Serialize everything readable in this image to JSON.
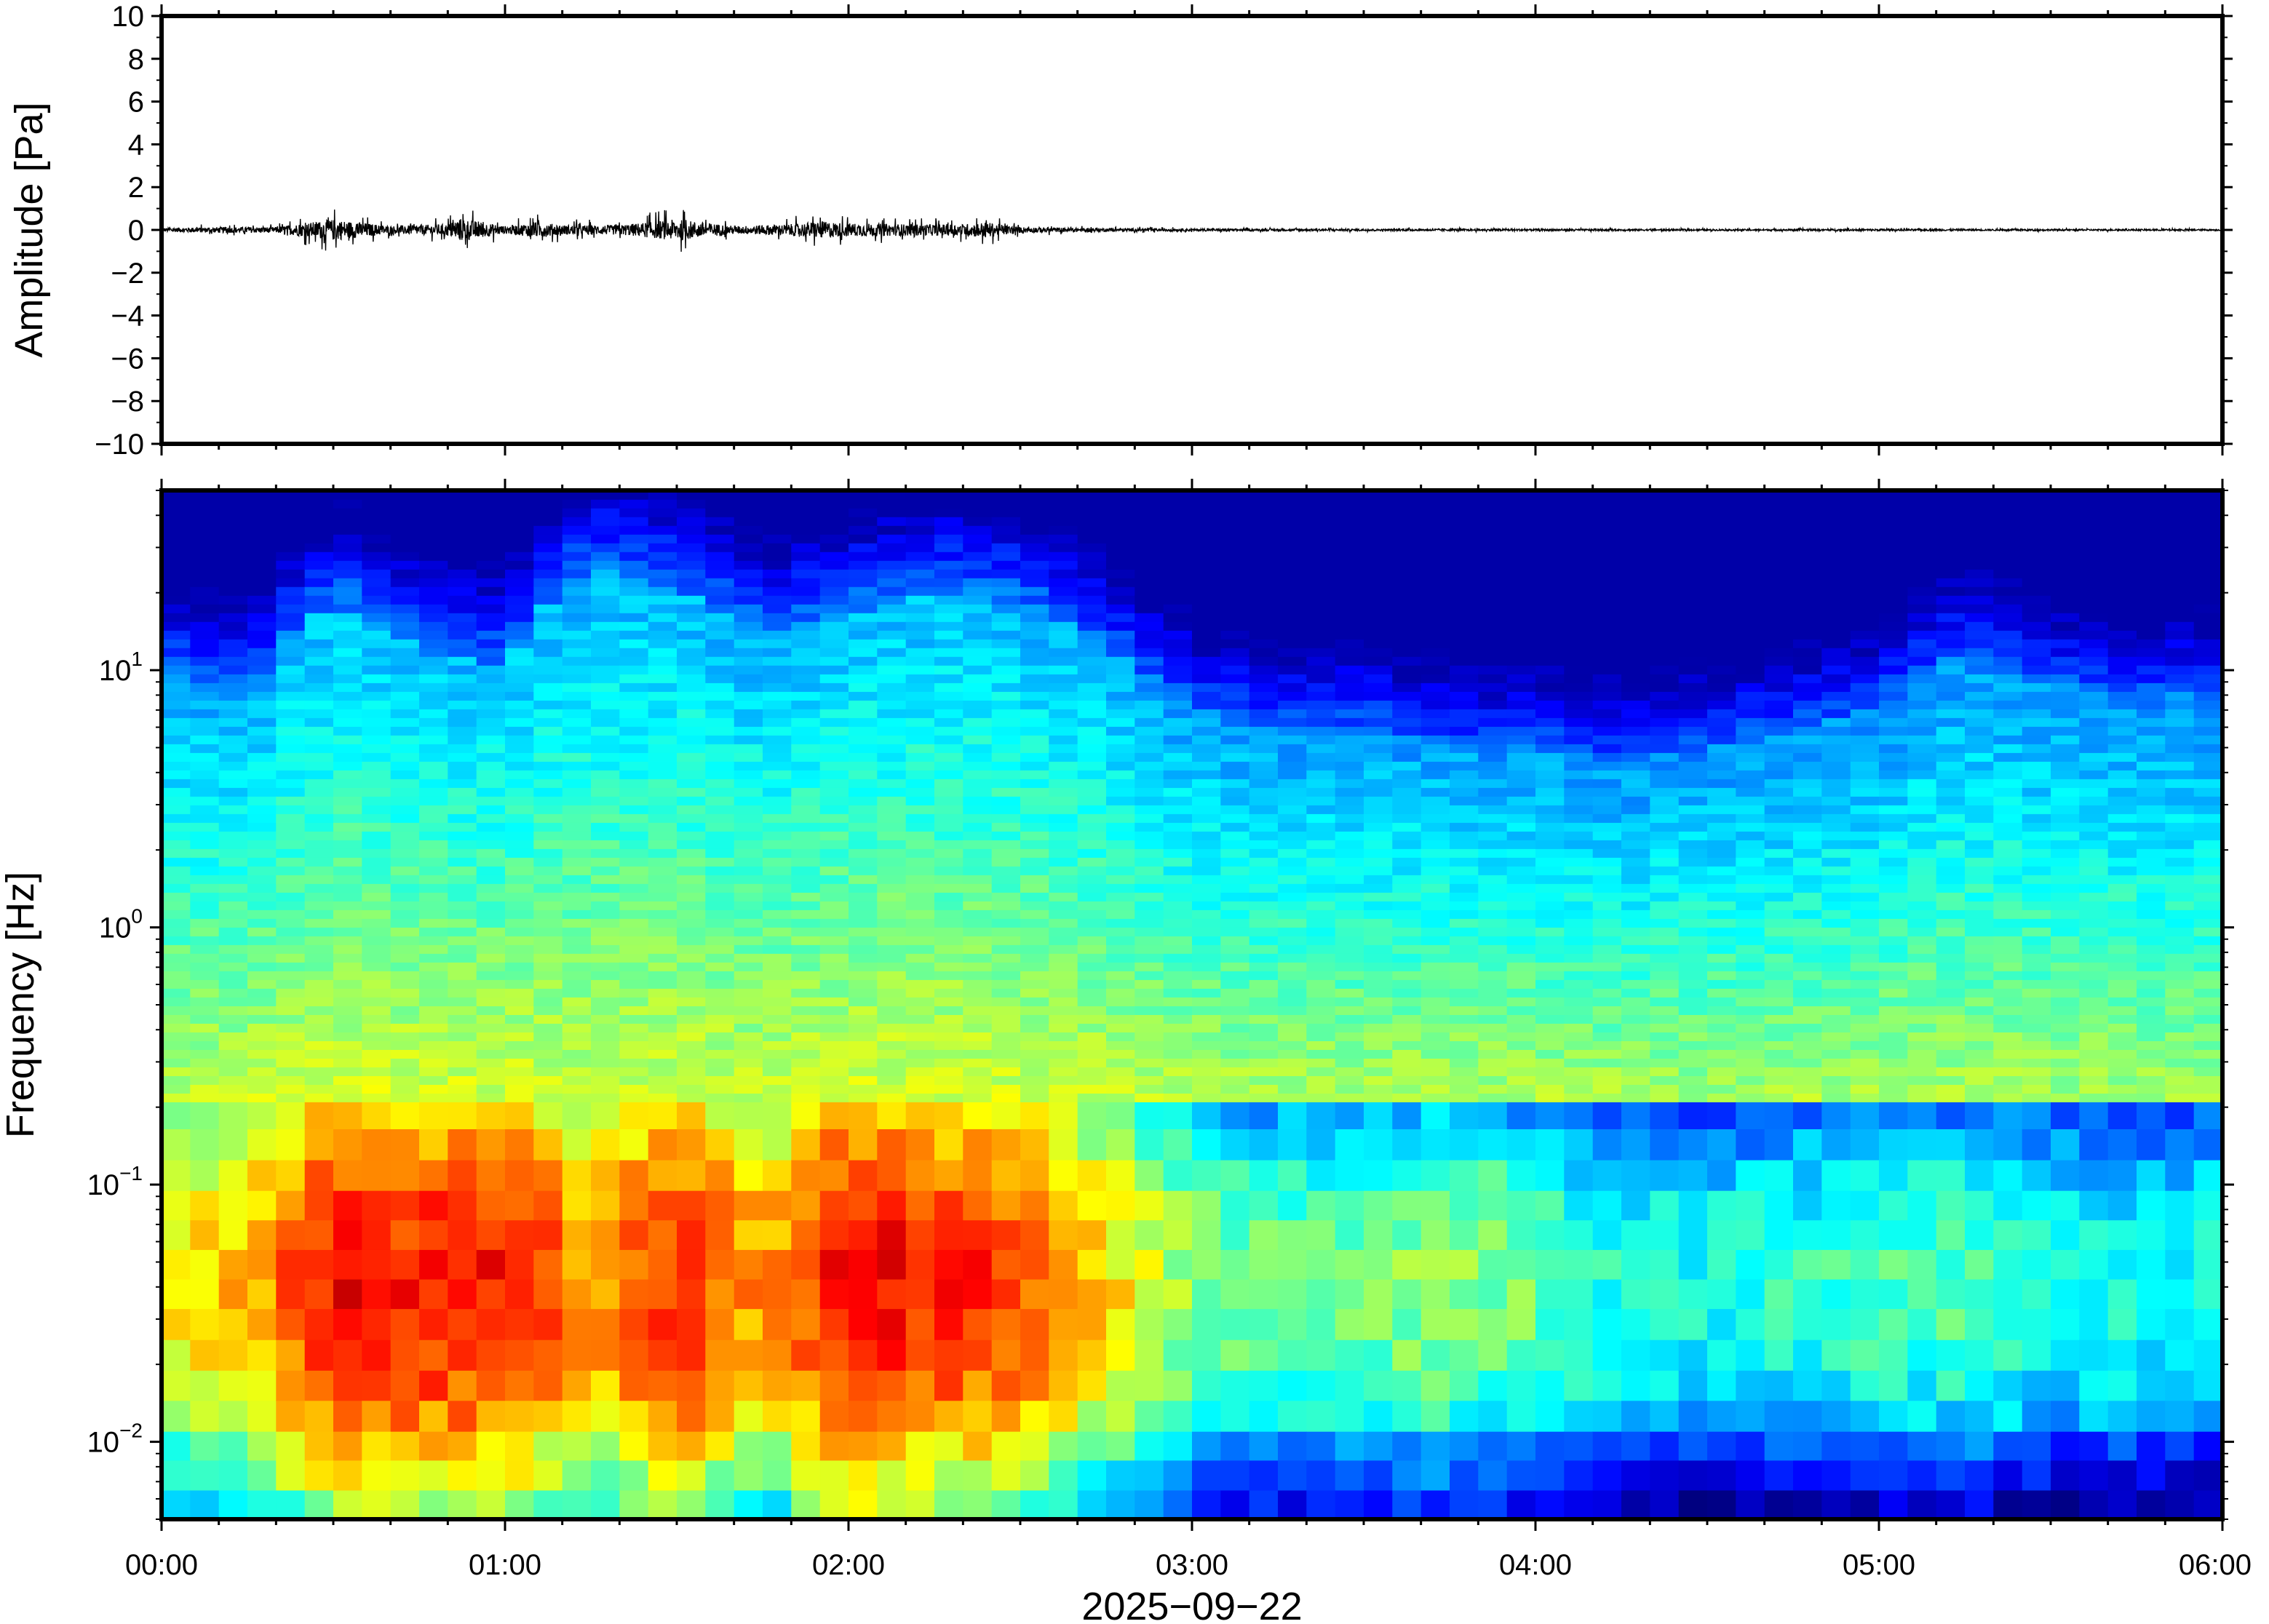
{
  "chart_data": [
    {
      "type": "line",
      "panel": "waveform",
      "title": "",
      "xlabel": "",
      "ylabel": "Amplitude [Pa]",
      "ylim": [
        -10,
        10
      ],
      "y_ticks": [
        -10,
        -8,
        -6,
        -4,
        -2,
        0,
        2,
        4,
        6,
        8,
        10
      ],
      "y_tick_labels": [
        "−10",
        "−8",
        "−6",
        "−4",
        "−2",
        "0",
        "2",
        "4",
        "6",
        "8",
        "10"
      ],
      "x_range_hours": [
        0,
        6
      ],
      "grid": false,
      "line_color": "#000000",
      "series": [
        {
          "x_hours": [
            0.0,
            0.17,
            0.33,
            0.5,
            0.67,
            0.83,
            0.87,
            1.0,
            1.1,
            1.17,
            1.33,
            1.5,
            1.67,
            1.83,
            1.92,
            2.0,
            2.17,
            2.33,
            2.4,
            2.5,
            2.67,
            2.83,
            3.0,
            3.5,
            4.0,
            4.5,
            5.0,
            5.5,
            6.0
          ],
          "amplitude_envelope": [
            0.2,
            0.3,
            0.3,
            1.1,
            0.4,
            0.6,
            1.2,
            0.4,
            0.8,
            0.5,
            0.5,
            1.1,
            0.4,
            0.6,
            0.9,
            0.7,
            0.6,
            0.6,
            0.8,
            0.3,
            0.2,
            0.15,
            0.12,
            0.1,
            0.1,
            0.08,
            0.1,
            0.08,
            0.08
          ]
        }
      ]
    },
    {
      "type": "heatmap",
      "panel": "spectrogram",
      "title": "",
      "xlabel": "2025−09−22",
      "ylabel": "Frequency [Hz]",
      "y_scale": "log",
      "ylim": [
        0.005,
        50
      ],
      "y_ticks": [
        0.01,
        0.1,
        1,
        10
      ],
      "y_tick_labels": [
        {
          "base": "10",
          "exp": "−2"
        },
        {
          "base": "10",
          "exp": "−1"
        },
        {
          "base": "10",
          "exp": "0"
        },
        {
          "base": "10",
          "exp": "1"
        }
      ],
      "x_range_hours": [
        0,
        6
      ],
      "x_ticks_hours": [
        0,
        1,
        2,
        3,
        4,
        5,
        6
      ],
      "x_tick_labels": [
        "00:00",
        "01:00",
        "02:00",
        "03:00",
        "04:00",
        "05:00",
        "06:00"
      ],
      "colormap": "jet",
      "time_columns_hours": [
        0.0,
        0.25,
        0.5,
        0.75,
        1.0,
        1.25,
        1.5,
        1.75,
        2.0,
        2.25,
        2.5,
        2.75,
        3.0,
        3.25,
        3.5,
        3.75,
        4.0,
        4.25,
        4.5,
        4.75,
        5.0,
        5.25,
        5.5,
        5.75
      ],
      "upper_energy_cutoff_hz": [
        10,
        8,
        18,
        12,
        10,
        25,
        20,
        14,
        16,
        20,
        18,
        12,
        7,
        6,
        6,
        5,
        5,
        4.5,
        5,
        6,
        7,
        12,
        9,
        8
      ],
      "peak_power_relative": [
        0.62,
        0.7,
        0.88,
        0.85,
        0.86,
        0.72,
        0.86,
        0.7,
        0.9,
        0.84,
        0.82,
        0.66,
        0.52,
        0.48,
        0.5,
        0.52,
        0.48,
        0.4,
        0.4,
        0.42,
        0.44,
        0.46,
        0.4,
        0.4
      ]
    }
  ]
}
